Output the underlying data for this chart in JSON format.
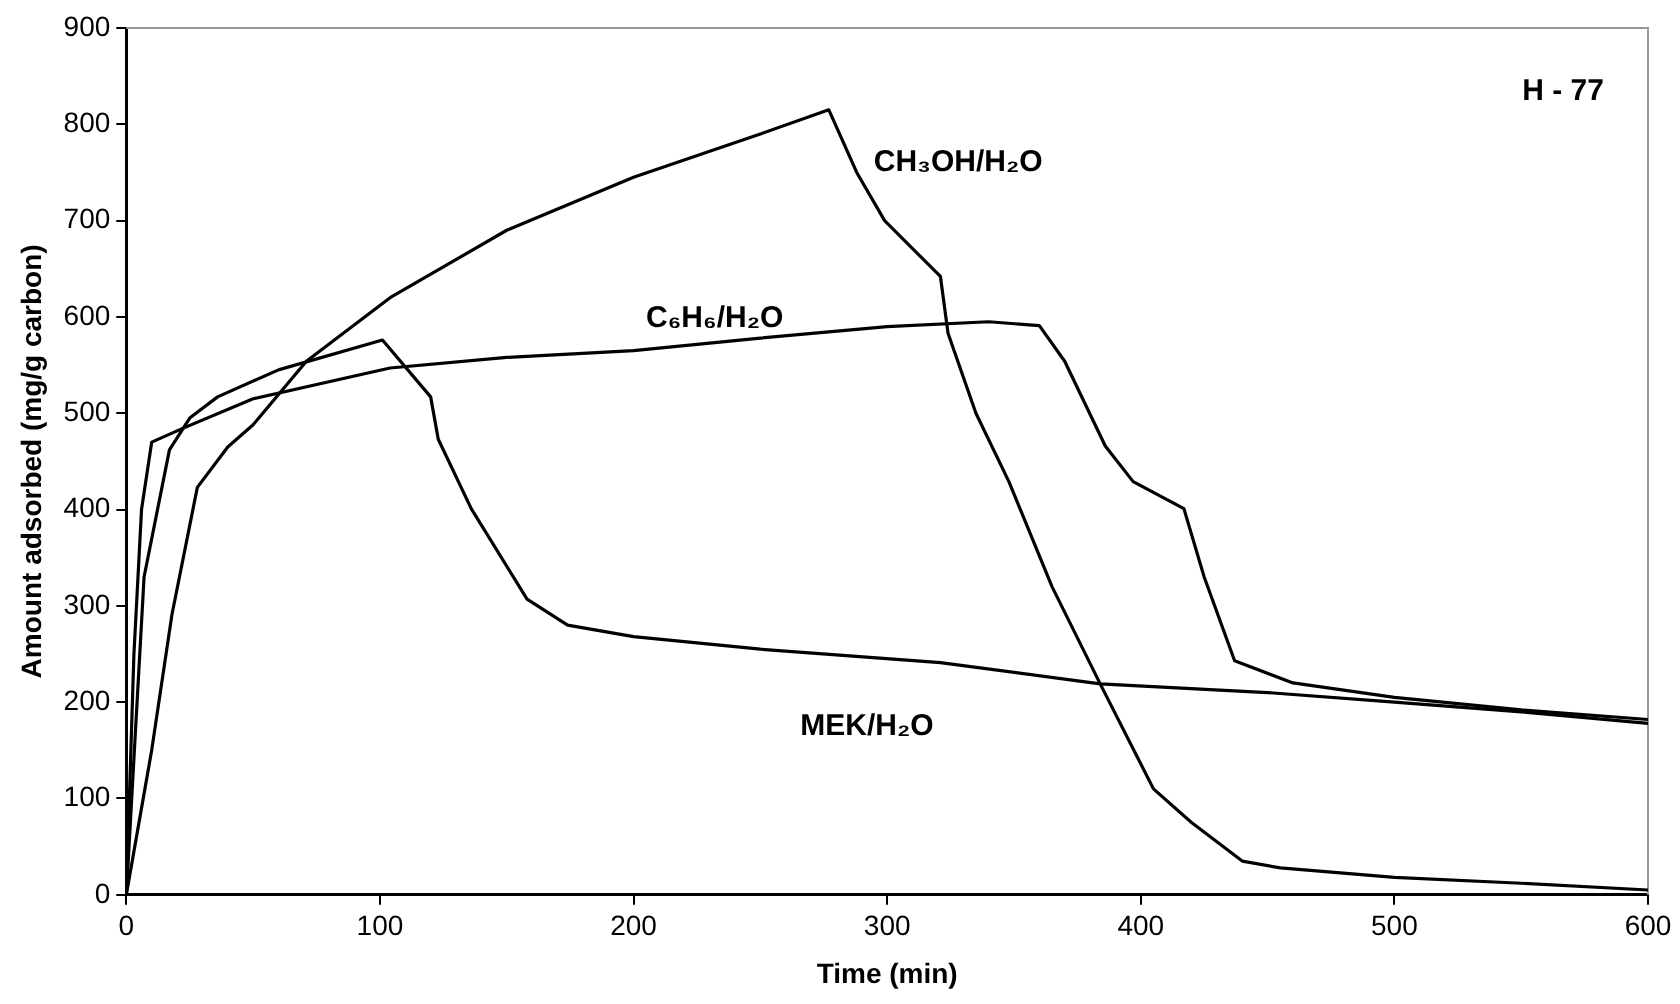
{
  "chart_data": {
    "type": "line",
    "xlabel": "Time (min)",
    "ylabel": "Amount adsorbed (mg/g carbon)",
    "xlim": [
      0,
      600
    ],
    "xticks": [
      0,
      100,
      200,
      300,
      400,
      500,
      600
    ],
    "ylim": [
      0,
      900
    ],
    "yticks": [
      0,
      100,
      200,
      300,
      400,
      500,
      600,
      700,
      800,
      900
    ],
    "grid": false,
    "legend": false,
    "marker": "none",
    "line_style": "solid",
    "annotations": [
      "H - 77"
    ],
    "series": [
      {
        "name": "CH₃OH/H₂O",
        "color": "#000000",
        "x": [
          0,
          10,
          18,
          28,
          40,
          50,
          71,
          104,
          150,
          200,
          250,
          277,
          288,
          299,
          321,
          324,
          335,
          348,
          365,
          384,
          405,
          420,
          440,
          455,
          500,
          550,
          600
        ],
        "values": [
          0,
          150,
          291,
          423,
          465,
          488,
          554,
          620,
          690,
          745,
          790,
          815,
          750,
          700,
          642,
          583,
          500,
          429,
          320,
          219,
          110,
          75,
          35,
          28,
          18,
          12,
          5
        ]
      },
      {
        "name": "C₆H₆/H₂O",
        "color": "#000000",
        "x": [
          0,
          3,
          6,
          10,
          22,
          50,
          104,
          150,
          200,
          250,
          300,
          340,
          360,
          370,
          386,
          397,
          417,
          425,
          437,
          460,
          500,
          550,
          600
        ],
        "values": [
          0,
          250,
          400,
          470,
          484,
          515,
          547,
          558,
          565,
          578,
          590,
          595,
          591,
          554,
          466,
          429,
          401,
          330,
          243,
          220,
          205,
          192,
          182
        ]
      },
      {
        "name": "MEK/H₂O",
        "color": "#000000",
        "x": [
          0,
          7,
          17,
          25,
          36,
          60,
          101,
          120,
          123,
          136,
          158,
          174,
          200,
          250,
          321,
          384,
          450,
          500,
          550,
          600
        ],
        "values": [
          0,
          330,
          462,
          495,
          517,
          545,
          576,
          517,
          473,
          401,
          307,
          280,
          268,
          255,
          241,
          219,
          210,
          200,
          190,
          178
        ]
      }
    ]
  }
}
